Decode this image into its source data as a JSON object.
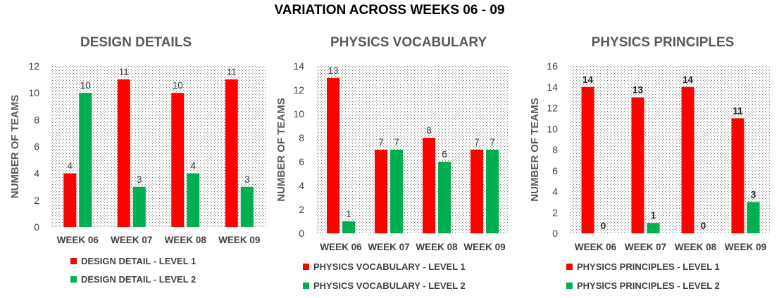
{
  "title": "VARIATION ACROSS WEEKS 06 - 09",
  "colors": {
    "level1": "#FF0000",
    "level2": "#00B050"
  },
  "chart_data": [
    {
      "type": "bar",
      "title": "DESIGN DETAILS",
      "ylabel": "NUMBER OF TEAMS",
      "xlabel": "",
      "categories": [
        "WEEK 06",
        "WEEK 07",
        "WEEK 08",
        "WEEK 09"
      ],
      "ylim": [
        0,
        12
      ],
      "yticks": [
        0,
        2,
        4,
        6,
        8,
        10,
        12
      ],
      "grid": "dotted background",
      "legend_position": "bottom",
      "series": [
        {
          "name": "DESIGN DETAIL - LEVEL 1",
          "color": "#FF0000",
          "values": [
            4,
            11,
            10,
            11
          ]
        },
        {
          "name": "DESIGN DETAIL - LEVEL 2",
          "color": "#00B050",
          "values": [
            10,
            3,
            4,
            3
          ]
        }
      ]
    },
    {
      "type": "bar",
      "title": "PHYSICS VOCABULARY",
      "ylabel": "NUMBER OF TEAMS",
      "xlabel": "",
      "categories": [
        "WEEK 06",
        "WEEK 07",
        "WEEK 08",
        "WEEK 09"
      ],
      "ylim": [
        0,
        14
      ],
      "yticks": [
        0,
        2,
        4,
        6,
        8,
        10,
        12,
        14
      ],
      "grid": "dotted background",
      "legend_position": "bottom",
      "series": [
        {
          "name": "PHYSICS VOCABULARY - LEVEL 1",
          "color": "#FF0000",
          "values": [
            13,
            7,
            8,
            7
          ]
        },
        {
          "name": "PHYSICS VOCABULARY - LEVEL 2",
          "color": "#00B050",
          "values": [
            1,
            7,
            6,
            7
          ]
        }
      ]
    },
    {
      "type": "bar",
      "title": "PHYSICS PRINCIPLES",
      "ylabel": "NUMBER OF TEAMS",
      "xlabel": "",
      "categories": [
        "WEEK 06",
        "WEEK 07",
        "WEEK 08",
        "WEEK 09"
      ],
      "ylim": [
        0,
        16
      ],
      "yticks": [
        0,
        2,
        4,
        6,
        8,
        10,
        12,
        14,
        16
      ],
      "grid": "dotted background",
      "legend_position": "bottom",
      "bold_data_labels": true,
      "series": [
        {
          "name": "PHYSICS PRINCIPLES - LEVEL 1",
          "color": "#FF0000",
          "values": [
            14,
            13,
            14,
            11
          ]
        },
        {
          "name": "PHYSICS PRINCIPLES - LEVEL 2",
          "color": "#00B050",
          "values": [
            0,
            1,
            0,
            3
          ]
        }
      ]
    }
  ]
}
